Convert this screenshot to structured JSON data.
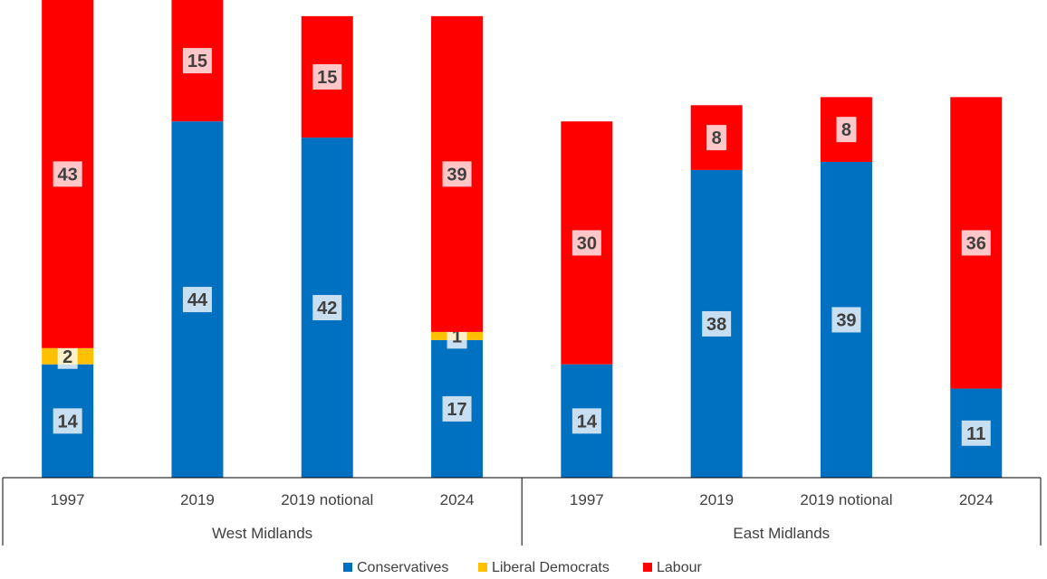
{
  "chart_data": {
    "type": "bar",
    "stacked": true,
    "groups": [
      {
        "label": "West Midlands",
        "categories": [
          "1997",
          "2019",
          "2019 notional",
          "2024"
        ]
      },
      {
        "label": "East Midlands",
        "categories": [
          "1997",
          "2019",
          "2019 notional",
          "2024"
        ]
      }
    ],
    "categories": [
      "1997",
      "2019",
      "2019 notional",
      "2024",
      "1997",
      "2019",
      "2019 notional",
      "2024"
    ],
    "series": [
      {
        "name": "Conservatives",
        "color": "#0070C0",
        "values": [
          14,
          44,
          42,
          17,
          14,
          38,
          39,
          11
        ]
      },
      {
        "name": "Liberal Democrats",
        "color": "#FFC000",
        "values": [
          2,
          0,
          0,
          1,
          0,
          0,
          0,
          0
        ]
      },
      {
        "name": "Labour",
        "color": "#FF0000",
        "values": [
          43,
          15,
          15,
          39,
          30,
          8,
          8,
          36
        ]
      }
    ],
    "legend_position": "bottom",
    "grid": false
  }
}
